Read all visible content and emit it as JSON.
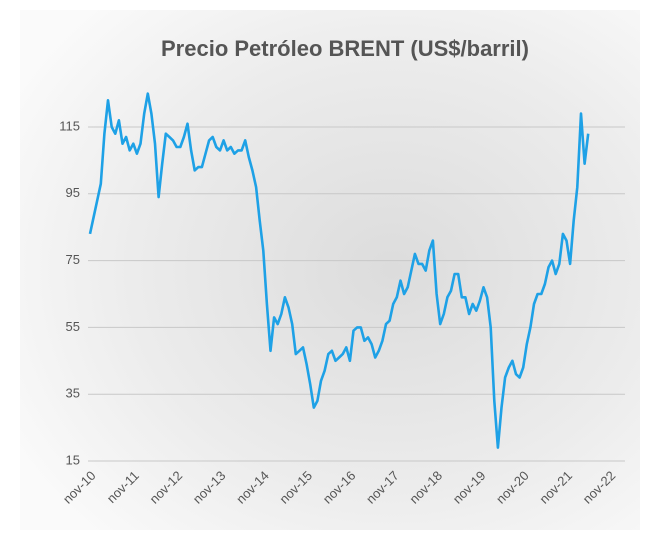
{
  "chart_data": {
    "type": "line",
    "title": "Precio Petróleo BRENT (US$/barril)",
    "categories": [
      "nov-10",
      null,
      null,
      null,
      null,
      null,
      null,
      null,
      null,
      null,
      null,
      null,
      "nov-11",
      null,
      null,
      null,
      null,
      null,
      null,
      null,
      null,
      null,
      null,
      null,
      "nov-12",
      null,
      null,
      null,
      null,
      null,
      null,
      null,
      null,
      null,
      null,
      null,
      "nov-13",
      null,
      null,
      null,
      null,
      null,
      null,
      null,
      null,
      null,
      null,
      null,
      "nov-14",
      null,
      null,
      null,
      null,
      null,
      null,
      null,
      null,
      null,
      null,
      null,
      "nov-15",
      null,
      null,
      null,
      null,
      null,
      null,
      null,
      null,
      null,
      null,
      null,
      "nov-16",
      null,
      null,
      null,
      null,
      null,
      null,
      null,
      null,
      null,
      null,
      null,
      "nov-17",
      null,
      null,
      null,
      null,
      null,
      null,
      null,
      null,
      null,
      null,
      null,
      "nov-18",
      null,
      null,
      null,
      null,
      null,
      null,
      null,
      null,
      null,
      null,
      null,
      "nov-19",
      null,
      null,
      null,
      null,
      null,
      null,
      null,
      null,
      null,
      null,
      null,
      "nov-20",
      null,
      null,
      null,
      null,
      null,
      null,
      null,
      null,
      null,
      null,
      null,
      "nov-21",
      null,
      null,
      null,
      null,
      null,
      null,
      null,
      null,
      null,
      null,
      null,
      "nov-22"
    ],
    "series": [
      {
        "name": "BRENT",
        "color": "#1ea1e6",
        "values": [
          83,
          88,
          93,
          98,
          113,
          123,
          115,
          113,
          117,
          110,
          112,
          108,
          110,
          107,
          110,
          119,
          125,
          119,
          110,
          94,
          104,
          113,
          112,
          111,
          109,
          109,
          112,
          116,
          108,
          102,
          103,
          103,
          107,
          111,
          112,
          109,
          108,
          111,
          108,
          109,
          107,
          108,
          108,
          111,
          106,
          102,
          97,
          87,
          78,
          62,
          48,
          58,
          56,
          59,
          64,
          61,
          56,
          47,
          48,
          49,
          44,
          38,
          31,
          33,
          39,
          42,
          47,
          48,
          45,
          46,
          47,
          49,
          45,
          54,
          55,
          55,
          51,
          52,
          50,
          46,
          48,
          51,
          56,
          57,
          62,
          64,
          69,
          65,
          67,
          72,
          77,
          74,
          74,
          72,
          78,
          81,
          65,
          56,
          59,
          64,
          66,
          71,
          71,
          64,
          64,
          59,
          62,
          60,
          63,
          67,
          64,
          55,
          33,
          19,
          31,
          40,
          43,
          45,
          41,
          40,
          43,
          50,
          55,
          62,
          65,
          65,
          68,
          73,
          75,
          71,
          74,
          83,
          81,
          74,
          87,
          97,
          119,
          104,
          113,
          null,
          null,
          null,
          null,
          null,
          null
        ]
      }
    ],
    "ylim": [
      15,
      130
    ],
    "yticks": [
      15,
      35,
      55,
      75,
      95,
      115
    ],
    "grid": true
  }
}
